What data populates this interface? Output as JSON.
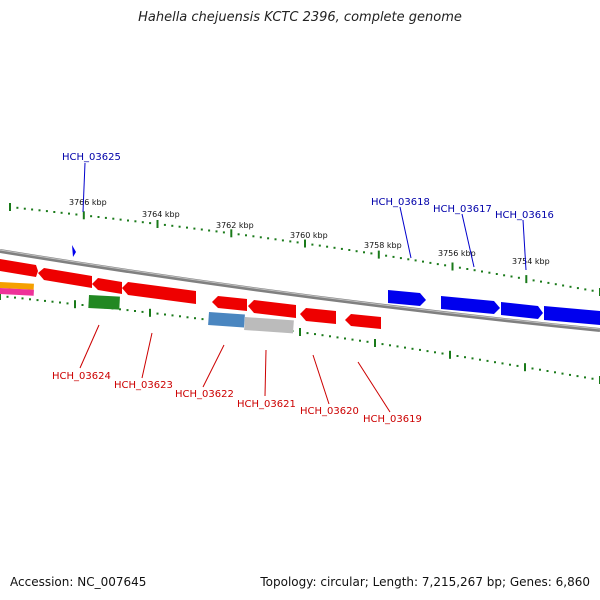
{
  "title": "Hahella chejuensis KCTC 2396, complete genome",
  "footer": {
    "accession": "Accession: NC_007645",
    "stats": "Topology: circular; Length: 7,215,267 bp; Genes: 6,860"
  },
  "scale_labels": [
    "3766 kbp",
    "3764 kbp",
    "3762 kbp",
    "3760 kbp",
    "3758 kbp",
    "3756 kbp",
    "3754 kbp"
  ],
  "colors": {
    "forward_gene": "#0000ee",
    "reverse_gene": "#ee0000",
    "forward_label": "#0000aa",
    "reverse_label": "#cc0000",
    "tick": "#1a7a1a",
    "backbone": "#808080"
  },
  "forward_genes": [
    "HCH_03625",
    "HCH_03618",
    "HCH_03617",
    "HCH_03616"
  ],
  "reverse_genes": [
    "HCH_03624",
    "HCH_03623",
    "HCH_03622",
    "HCH_03621",
    "HCH_03620",
    "HCH_03619"
  ]
}
